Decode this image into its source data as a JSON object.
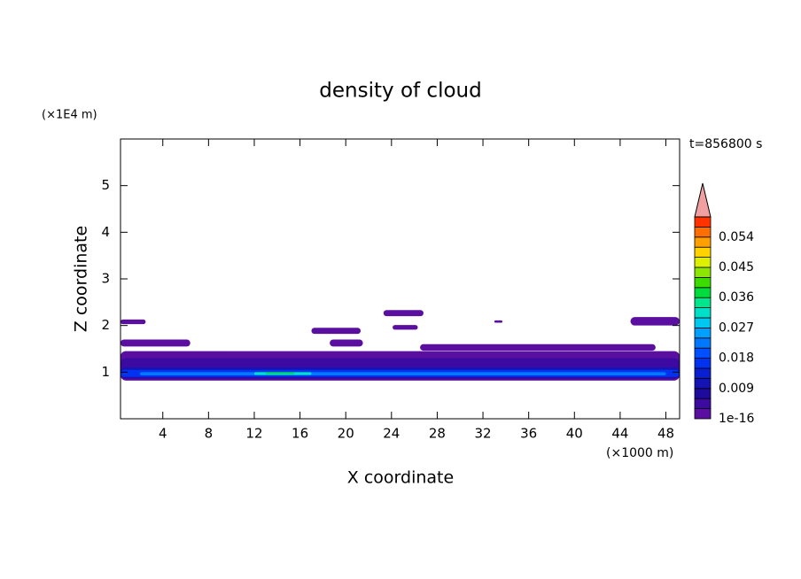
{
  "chart_data": {
    "type": "contour",
    "title": "density of cloud",
    "xlabel": "X coordinate",
    "ylabel": "Z coordinate",
    "x_unit": "(×1000 m)",
    "y_unit": "(×1E4 m)",
    "time_label": "t=856800 s",
    "xlim": [
      0.3,
      49.2
    ],
    "ylim": [
      0,
      6
    ],
    "xticks": [
      4,
      8,
      12,
      16,
      20,
      24,
      28,
      32,
      36,
      40,
      44,
      48
    ],
    "yticks": [
      1,
      2,
      3,
      4,
      5
    ],
    "levels": [
      1e-16,
      0.003,
      0.006,
      0.009,
      0.012,
      0.015,
      0.018,
      0.021,
      0.024,
      0.027,
      0.03,
      0.033,
      0.036,
      0.039,
      0.042,
      0.045,
      0.048,
      0.051,
      0.054,
      0.057,
      0.06
    ],
    "colors": [
      "#5a0fa0",
      "#3c0aa0",
      "#1e0a9c",
      "#1414b4",
      "#0a1ed2",
      "#0032f0",
      "#0050ff",
      "#0078ff",
      "#00a0ff",
      "#00c8f0",
      "#00e0c8",
      "#00e68c",
      "#00dc3c",
      "#3cdc00",
      "#8ce600",
      "#dcf000",
      "#ffd200",
      "#ffa000",
      "#ff6e00",
      "#ff3200"
    ],
    "extend_color": "#f0a0a0",
    "colorbar_ticks": [
      1e-16,
      0.009,
      0.018,
      0.027,
      0.036,
      0.045,
      0.054
    ],
    "regions": [
      {
        "level": 1e-16,
        "x": [
          0.3,
          49.2
        ],
        "z": [
          0.82,
          1.45
        ]
      },
      {
        "level": 0.003,
        "x": [
          0.3,
          49.2
        ],
        "z": [
          0.85,
          1.3
        ]
      },
      {
        "level": 0.009,
        "x": [
          0.3,
          49.2
        ],
        "z": [
          0.88,
          1.1
        ]
      },
      {
        "level": 0.015,
        "x": [
          0.3,
          49.2
        ],
        "z": [
          0.9,
          1.05
        ]
      },
      {
        "level": 0.021,
        "x": [
          2,
          48
        ],
        "z": [
          0.93,
          1.0
        ]
      },
      {
        "level": 0.03,
        "x": [
          12,
          17
        ],
        "z": [
          0.94,
          1.0
        ]
      },
      {
        "level": 0.036,
        "x": [
          13,
          15.5
        ],
        "z": [
          0.96,
          0.99
        ]
      },
      {
        "level": 1e-16,
        "x": [
          0.3,
          2.5
        ],
        "z": [
          2.03,
          2.13
        ]
      },
      {
        "level": 1e-16,
        "x": [
          17,
          21.3
        ],
        "z": [
          1.82,
          1.95
        ]
      },
      {
        "level": 1e-16,
        "x": [
          23.3,
          26.8
        ],
        "z": [
          2.2,
          2.33
        ]
      },
      {
        "level": 1e-16,
        "x": [
          24.1,
          26.3
        ],
        "z": [
          1.91,
          2.01
        ]
      },
      {
        "level": 1e-16,
        "x": [
          44.9,
          49.2
        ],
        "z": [
          2.0,
          2.18
        ]
      },
      {
        "level": 1e-16,
        "x": [
          0.3,
          6.4
        ],
        "z": [
          1.55,
          1.7
        ]
      },
      {
        "level": 1e-16,
        "x": [
          18.6,
          21.5
        ],
        "z": [
          1.55,
          1.7
        ]
      },
      {
        "level": 1e-16,
        "x": [
          26.5,
          47.1
        ],
        "z": [
          1.46,
          1.6
        ]
      },
      {
        "level": 1e-16,
        "x": [
          33,
          33.7
        ],
        "z": [
          2.06,
          2.11
        ]
      }
    ]
  }
}
